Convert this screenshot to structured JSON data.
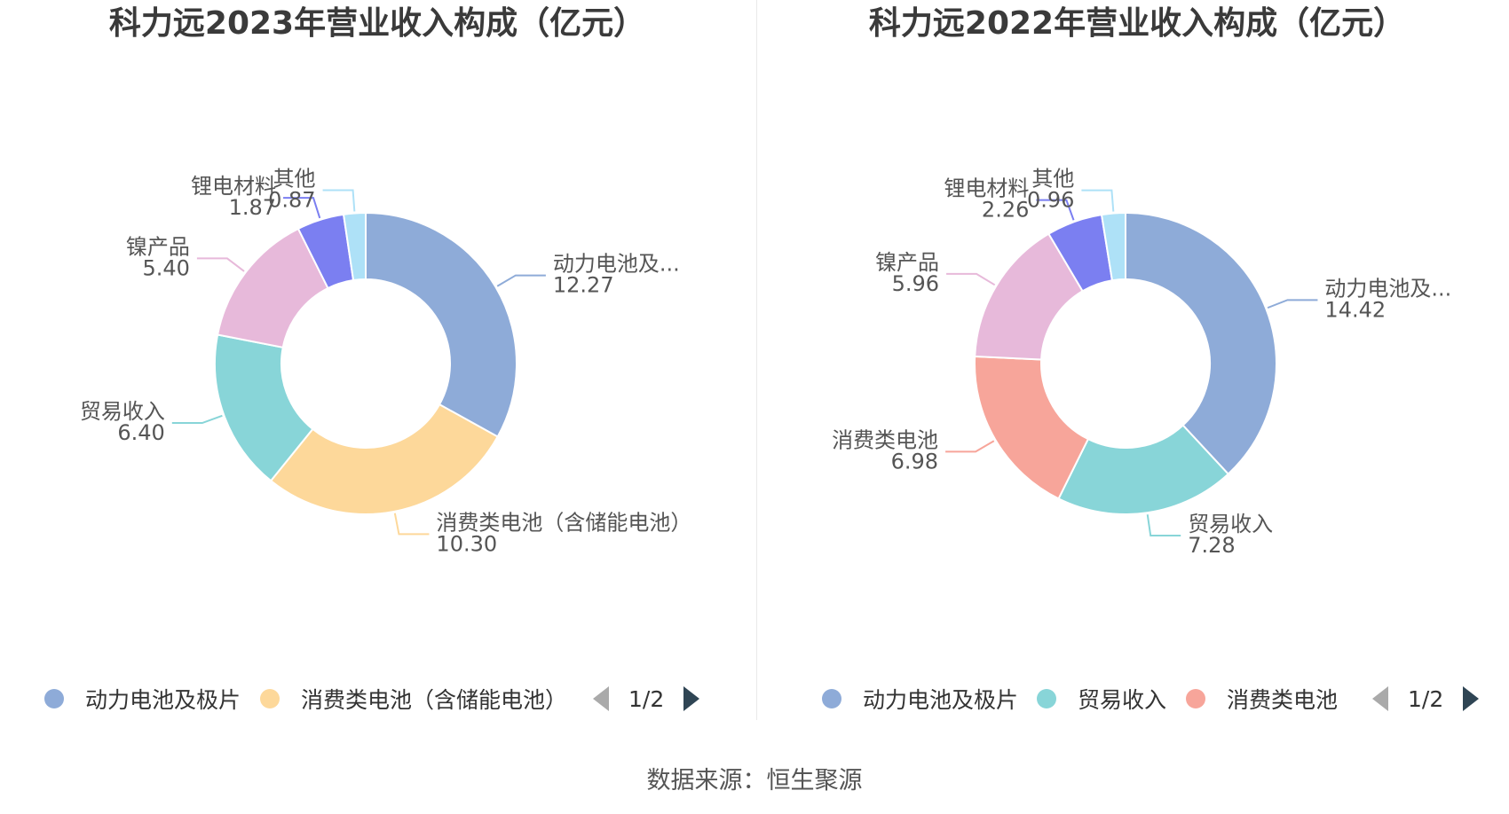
{
  "source_text": "数据来源：恒生聚源",
  "chart_data": [
    {
      "type": "pie",
      "title": "科力远2023年营业收入构成（亿元）",
      "slices": [
        {
          "label": "动力电池及...",
          "value": 12.27,
          "color": "#8eabd8"
        },
        {
          "label": "消费类电池（含储能电池）",
          "value": 10.3,
          "color": "#fdd89a"
        },
        {
          "label": "贸易收入",
          "value": 6.4,
          "color": "#88d5d8"
        },
        {
          "label": "镍产品",
          "value": 5.4,
          "color": "#e7b9da"
        },
        {
          "label": "锂电材料",
          "value": 1.87,
          "color": "#7b7ff1"
        },
        {
          "label": "其他",
          "value": 0.87,
          "color": "#aee1f7"
        }
      ],
      "legend": {
        "position": "bottom",
        "items": [
          {
            "label": "动力电池及极片",
            "color": "#8eabd8"
          },
          {
            "label": "消费类电池（含储能电池）",
            "color": "#fdd89a"
          }
        ],
        "page_text": "1/2"
      }
    },
    {
      "type": "pie",
      "title": "科力远2022年营业收入构成（亿元）",
      "slices": [
        {
          "label": "动力电池及...",
          "value": 14.42,
          "color": "#8eabd8"
        },
        {
          "label": "贸易收入",
          "value": 7.28,
          "color": "#88d5d8"
        },
        {
          "label": "消费类电池",
          "value": 6.98,
          "color": "#f7a59a"
        },
        {
          "label": "镍产品",
          "value": 5.96,
          "color": "#e7b9da"
        },
        {
          "label": "锂电材料",
          "value": 2.26,
          "color": "#7b7ff1"
        },
        {
          "label": "其他",
          "value": 0.96,
          "color": "#aee1f7"
        }
      ],
      "legend": {
        "position": "bottom",
        "items": [
          {
            "label": "动力电池及极片",
            "color": "#8eabd8"
          },
          {
            "label": "贸易收入",
            "color": "#88d5d8"
          },
          {
            "label": "消费类电池",
            "color": "#f7a59a"
          }
        ],
        "page_text": "1/2"
      }
    }
  ]
}
